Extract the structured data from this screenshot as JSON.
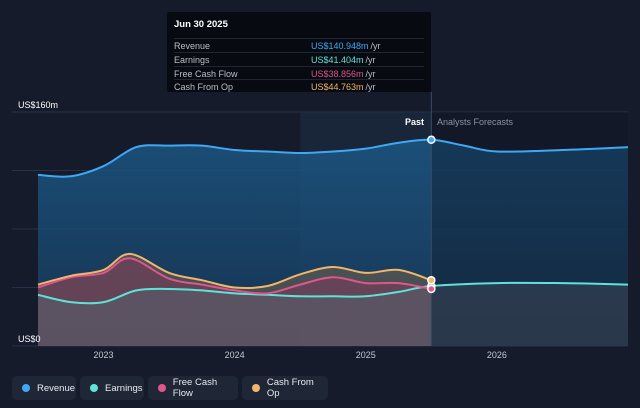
{
  "tooltip": {
    "date": "Jun 30 2025",
    "rows": [
      {
        "label": "Revenue",
        "value": "US$140.948m",
        "per": "/yr",
        "color": "#3fa8f5"
      },
      {
        "label": "Earnings",
        "value": "US$41.404m",
        "per": "/yr",
        "color": "#5fe3d8"
      },
      {
        "label": "Free Cash Flow",
        "value": "US$38.856m",
        "per": "/yr",
        "color": "#e0568c"
      },
      {
        "label": "Cash From Op",
        "value": "US$44.763m",
        "per": "/yr",
        "color": "#f2b56b"
      }
    ]
  },
  "annotations": {
    "past": "Past",
    "forecast": "Analysts Forecasts"
  },
  "legend": [
    {
      "label": "Revenue",
      "color": "#3fa8f5"
    },
    {
      "label": "Earnings",
      "color": "#5fe3d8"
    },
    {
      "label": "Free Cash Flow",
      "color": "#e0568c"
    },
    {
      "label": "Cash From Op",
      "color": "#f2b56b"
    }
  ],
  "chart_data": {
    "type": "area",
    "title": "",
    "ylim": [
      0,
      160
    ],
    "y_ticks": [
      {
        "value": 160,
        "label": "US$160m"
      },
      {
        "value": 0,
        "label": "US$0"
      }
    ],
    "xlim": [
      2022.5,
      2027.0
    ],
    "x_ticks": [
      2023,
      2024,
      2025,
      2026
    ],
    "x_tick_labels": [
      "2023",
      "2024",
      "2025",
      "2026"
    ],
    "past_until": 2025.5,
    "highlight_from": 2024.5,
    "grid": true,
    "legend_position": "bottom",
    "series": [
      {
        "name": "Revenue",
        "color": "#3fa8f5",
        "x": [
          2022.5,
          2022.75,
          2023.0,
          2023.25,
          2023.5,
          2023.75,
          2024.0,
          2024.25,
          2024.5,
          2024.75,
          2025.0,
          2025.25,
          2025.5,
          2025.75,
          2026.0,
          2026.5,
          2027.0
        ],
        "y": [
          117,
          116,
          123,
          136,
          137,
          137,
          134,
          133,
          132,
          133,
          135,
          139,
          141,
          137,
          133,
          134,
          136
        ]
      },
      {
        "name": "Earnings",
        "color": "#5fe3d8",
        "x": [
          2022.5,
          2022.75,
          2023.0,
          2023.25,
          2023.5,
          2023.75,
          2024.0,
          2024.25,
          2024.5,
          2024.75,
          2025.0,
          2025.25,
          2025.5,
          2026.0,
          2026.5,
          2027.0
        ],
        "y": [
          35,
          30,
          30,
          38,
          39,
          38,
          36,
          35,
          34,
          34,
          34,
          37,
          41,
          43,
          43,
          42
        ]
      },
      {
        "name": "Free Cash Flow",
        "color": "#e0568c",
        "x": [
          2022.5,
          2022.75,
          2023.0,
          2023.2,
          2023.5,
          2023.75,
          2024.0,
          2024.25,
          2024.5,
          2024.75,
          2025.0,
          2025.25,
          2025.5
        ],
        "y": [
          40,
          47,
          50,
          60,
          46,
          42,
          38,
          36,
          42,
          47,
          43,
          43,
          39
        ]
      },
      {
        "name": "Cash From Op",
        "color": "#f2b56b",
        "x": [
          2022.5,
          2022.75,
          2023.0,
          2023.2,
          2023.5,
          2023.75,
          2024.0,
          2024.25,
          2024.5,
          2024.75,
          2025.0,
          2025.25,
          2025.5
        ],
        "y": [
          42,
          48,
          52,
          63,
          50,
          45,
          40,
          41,
          49,
          54,
          50,
          52,
          45
        ]
      }
    ]
  }
}
